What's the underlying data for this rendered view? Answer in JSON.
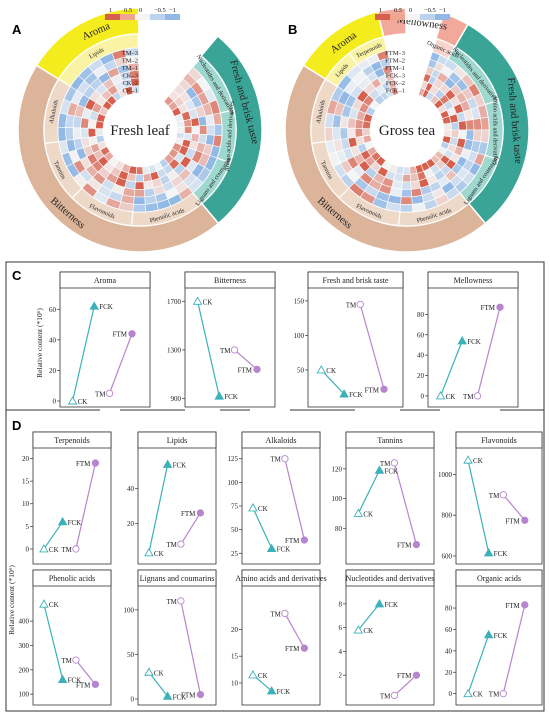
{
  "panels": {
    "A": "A",
    "B": "B",
    "C": "C",
    "D": "D"
  },
  "colors": {
    "aroma": "#f5ec1e",
    "aroma_light": "#f9f3a3",
    "bitterness": "#dcb49a",
    "bitterness_light": "#eed9c9",
    "fresh": "#3aa596",
    "fresh_light": "#9fd8cf",
    "mellowness": "#f2a89b",
    "mellowness_light": "#f8d6cf",
    "ck": "#3bb1b9",
    "tm": "#b785cf",
    "heat_pos": "#d6604d",
    "heat_neg": "#92b9e6"
  },
  "legend": {
    "scale_labels": [
      "1",
      "0.5",
      "0",
      "−0.5",
      "−1"
    ]
  },
  "circle_A": {
    "center_label": "Fresh leaf",
    "rings": [
      "TM–3",
      "TM–2",
      "TM–1",
      "CK–3",
      "CK–2",
      "CK–1"
    ],
    "outer": [
      "Aroma",
      "Fresh and brisk taste",
      "Bitterness"
    ],
    "inner": [
      "Lipids",
      "Nucleotides and derivatives",
      "Amino acids and derivatives",
      "Lignans and coumarins",
      "Phenolic acids",
      "Flavonoids",
      "Tannins",
      "Alkaloids"
    ]
  },
  "circle_B": {
    "center_label": "Gross tea",
    "rings": [
      "FTM–3",
      "FTM–2",
      "FTM–1",
      "FCK–3",
      "FCK–2",
      "FCK–1"
    ],
    "outer": [
      "Aroma",
      "Mellowness",
      "Fresh and brisk taste",
      "Bitterness"
    ],
    "inner": [
      "Lipids",
      "Terpenoids",
      "Organic acids",
      "Nucleotides and derivatives",
      "Amino acids and derivatives",
      "Lignans and coumarins",
      "Phenolic acids",
      "Flavonoids",
      "Tannins",
      "Alkaloids"
    ]
  },
  "ylabel": "Relative content (*10⁶)",
  "chart_data": [
    {
      "type": "line",
      "panel": "C",
      "title": "Aroma",
      "ylim": [
        0,
        70
      ],
      "yticks": [
        0,
        20,
        40,
        60
      ],
      "ck": [
        0,
        62
      ],
      "tm": [
        5,
        44
      ]
    },
    {
      "type": "line",
      "panel": "C",
      "title": "Bitterness",
      "ylim": [
        880,
        1760
      ],
      "yticks": [
        900,
        1300,
        1700
      ],
      "ck": [
        1700,
        920
      ],
      "tm": [
        1300,
        1140
      ]
    },
    {
      "type": "line",
      "panel": "C",
      "title": "Fresh and brisk taste",
      "ylim": [
        5,
        160
      ],
      "yticks": [
        50,
        100,
        150
      ],
      "ck": [
        50,
        15
      ],
      "tm": [
        145,
        22
      ]
    },
    {
      "type": "line",
      "panel": "C",
      "title": "Mellowness",
      "ylim": [
        -5,
        100
      ],
      "yticks": [
        0,
        20,
        40,
        60,
        80
      ],
      "ck": [
        0,
        54
      ],
      "tm": [
        0,
        87
      ]
    },
    {
      "type": "line",
      "panel": "D",
      "title": "Terpenoids",
      "ylim": [
        -2,
        21
      ],
      "yticks": [
        0,
        5,
        10,
        15,
        20
      ],
      "ck": [
        0,
        6
      ],
      "tm": [
        0,
        19
      ]
    },
    {
      "type": "line",
      "panel": "D",
      "title": "Lipids",
      "ylim": [
        0,
        60
      ],
      "yticks": [
        20,
        40
      ],
      "ck": [
        3,
        54
      ],
      "tm": [
        8,
        26
      ]
    },
    {
      "type": "line",
      "panel": "D",
      "title": "Alkaloids",
      "ylim": [
        20,
        130
      ],
      "yticks": [
        25,
        50,
        75,
        100,
        125
      ],
      "ck": [
        73,
        30
      ],
      "tm": [
        125,
        39
      ]
    },
    {
      "type": "line",
      "panel": "D",
      "title": "Tannins",
      "ylim": [
        60,
        130
      ],
      "yticks": [
        80,
        100,
        120
      ],
      "ck": [
        90,
        119
      ],
      "tm": [
        124,
        69
      ]
    },
    {
      "type": "line",
      "panel": "D",
      "title": "Flavonoids",
      "ylim": [
        590,
        1100
      ],
      "yticks": [
        600,
        800,
        1000
      ],
      "ck": [
        1070,
        615
      ],
      "tm": [
        900,
        775
      ]
    },
    {
      "type": "line",
      "panel": "D",
      "title": "Phenolic acids",
      "ylim": [
        80,
        520
      ],
      "yticks": [
        100,
        200,
        300,
        400
      ],
      "ck": [
        470,
        160
      ],
      "tm": [
        240,
        140
      ]
    },
    {
      "type": "line",
      "panel": "D",
      "title": "Lignans and coumarins",
      "ylim": [
        0,
        120
      ],
      "yticks": [
        0,
        50,
        100
      ],
      "ck": [
        30,
        3
      ],
      "tm": [
        110,
        5
      ]
    },
    {
      "type": "line",
      "panel": "D",
      "title": "Amino acids and derivatives",
      "ylim": [
        7,
        27
      ],
      "yticks": [
        10,
        15,
        20
      ],
      "ck": [
        11.5,
        8.5
      ],
      "tm": [
        23,
        16.5
      ]
    },
    {
      "type": "line",
      "panel": "D",
      "title": "Nucleotides and derivatives",
      "ylim": [
        0,
        9
      ],
      "yticks": [
        2,
        4,
        6,
        8
      ],
      "ck": [
        5.8,
        8
      ],
      "tm": [
        0.3,
        2
      ]
    },
    {
      "type": "line",
      "panel": "D",
      "title": "Organic acids",
      "ylim": [
        -5,
        95
      ],
      "yticks": [
        0,
        20,
        40,
        60,
        80
      ],
      "ck": [
        0,
        55
      ],
      "tm": [
        0,
        83
      ]
    }
  ]
}
